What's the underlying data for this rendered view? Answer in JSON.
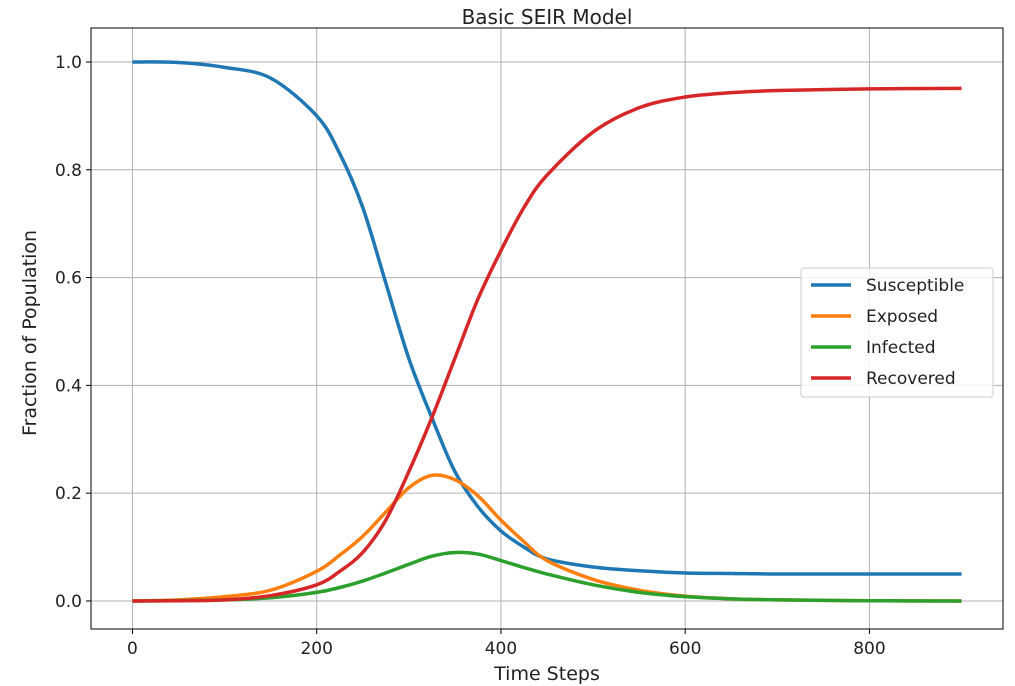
{
  "chart_data": {
    "type": "line",
    "title": "Basic SEIR Model",
    "xlabel": "Time Steps",
    "ylabel": "Fraction of Population",
    "xlim": [
      -45,
      945
    ],
    "ylim": [
      -0.052,
      1.063
    ],
    "xticks": [
      0,
      200,
      400,
      600,
      800
    ],
    "xtick_labels": [
      "0",
      "200",
      "400",
      "600",
      "800"
    ],
    "yticks": [
      0,
      0.2,
      0.4,
      0.6,
      0.8,
      1.0
    ],
    "ytick_labels": [
      "0.0",
      "0.2",
      "0.4",
      "0.6",
      "0.8",
      "1.0"
    ],
    "grid": true,
    "legend_position": "center-right",
    "x": [
      0,
      50,
      100,
      150,
      200,
      225,
      250,
      275,
      300,
      325,
      350,
      375,
      400,
      425,
      450,
      500,
      550,
      600,
      650,
      700,
      800,
      900
    ],
    "series": [
      {
        "name": "Susceptible",
        "color": "#1f77b4",
        "values": [
          1.0,
          0.999,
          0.99,
          0.97,
          0.9,
          0.83,
          0.73,
          0.59,
          0.45,
          0.34,
          0.24,
          0.175,
          0.13,
          0.1,
          0.078,
          0.063,
          0.056,
          0.052,
          0.051,
          0.05,
          0.05,
          0.05
        ]
      },
      {
        "name": "Exposed",
        "color": "#ff7f0e",
        "values": [
          0,
          0.002,
          0.008,
          0.02,
          0.055,
          0.085,
          0.12,
          0.165,
          0.21,
          0.233,
          0.225,
          0.195,
          0.15,
          0.11,
          0.075,
          0.04,
          0.02,
          0.009,
          0.004,
          0.002,
          0.0005,
          0
        ]
      },
      {
        "name": "Infected",
        "color": "#2ca02c",
        "values": [
          0,
          0.0008,
          0.002,
          0.006,
          0.016,
          0.025,
          0.037,
          0.052,
          0.068,
          0.083,
          0.09,
          0.087,
          0.075,
          0.062,
          0.05,
          0.03,
          0.016,
          0.008,
          0.004,
          0.002,
          0.0005,
          0
        ]
      },
      {
        "name": "Recovered",
        "color": "#d62728",
        "values": [
          0,
          0.0005,
          0.002,
          0.01,
          0.03,
          0.055,
          0.09,
          0.15,
          0.24,
          0.34,
          0.45,
          0.56,
          0.65,
          0.73,
          0.79,
          0.87,
          0.915,
          0.935,
          0.943,
          0.947,
          0.95,
          0.951
        ]
      }
    ]
  }
}
